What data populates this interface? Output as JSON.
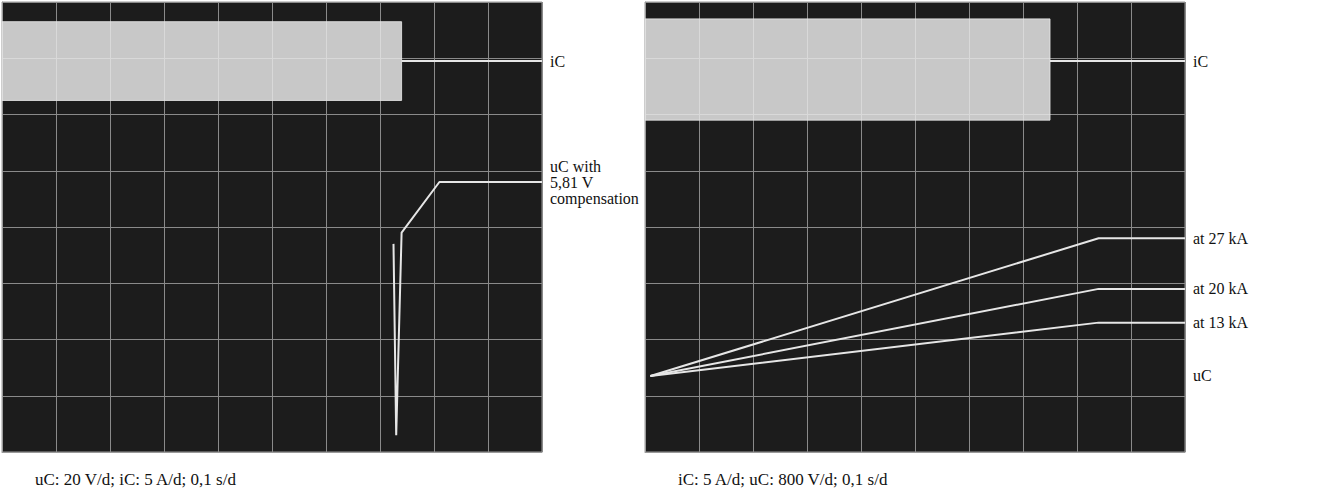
{
  "chart_data": [
    {
      "type": "line",
      "caption": "uC: 20 V/d; iC: 5 A/d; 0,1 s/d",
      "xlim": [
        0,
        10
      ],
      "ylim": [
        0,
        8
      ],
      "xticks": [
        0,
        1,
        2,
        3,
        4,
        5,
        6,
        7,
        8,
        9,
        10
      ],
      "yticks": [
        0,
        1,
        2,
        3,
        4,
        5,
        6,
        7,
        8
      ],
      "grid": true,
      "tick_labels": false,
      "series": [
        {
          "name": "iC",
          "color": "#e6e6e6",
          "band": {
            "x": [
              0,
              7.4
            ],
            "lower": [
              6.25,
              6.25
            ],
            "upper": [
              7.65,
              7.65
            ]
          },
          "x": [
            7.4,
            10
          ],
          "values": [
            6.95,
            6.95
          ]
        },
        {
          "name": "uC with 5,81 V compensation",
          "color": "#e6e6e6",
          "x": [
            7.25,
            7.3,
            7.4,
            8.1,
            10
          ],
          "values": [
            3.7,
            0.3,
            3.9,
            4.8,
            4.8
          ]
        }
      ]
    },
    {
      "type": "line",
      "caption": "iC: 5 A/d; uC: 800 V/d; 0,1 s/d",
      "annotation": "uC",
      "xlim": [
        0,
        10
      ],
      "ylim": [
        0,
        8
      ],
      "xticks": [
        0,
        1,
        2,
        3,
        4,
        5,
        6,
        7,
        8,
        9,
        10
      ],
      "yticks": [
        0,
        1,
        2,
        3,
        4,
        5,
        6,
        7,
        8
      ],
      "grid": true,
      "tick_labels": false,
      "series": [
        {
          "name": "iC",
          "color": "#e6e6e6",
          "band": {
            "x": [
              0,
              7.5
            ],
            "lower": [
              5.9,
              5.9
            ],
            "upper": [
              7.7,
              7.7
            ]
          },
          "x": [
            7.5,
            10
          ],
          "values": [
            6.95,
            6.95
          ]
        },
        {
          "name": "at 27 kA",
          "color": "#e6e6e6",
          "x": [
            0.1,
            8.4,
            10
          ],
          "values": [
            1.35,
            3.8,
            3.8
          ]
        },
        {
          "name": "at 20 kA",
          "color": "#e6e6e6",
          "x": [
            0.1,
            8.4,
            10
          ],
          "values": [
            1.35,
            2.9,
            2.9
          ]
        },
        {
          "name": "at 13 kA",
          "color": "#e6e6e6",
          "x": [
            0.1,
            8.4,
            10
          ],
          "values": [
            1.35,
            2.3,
            2.3
          ]
        }
      ]
    }
  ]
}
